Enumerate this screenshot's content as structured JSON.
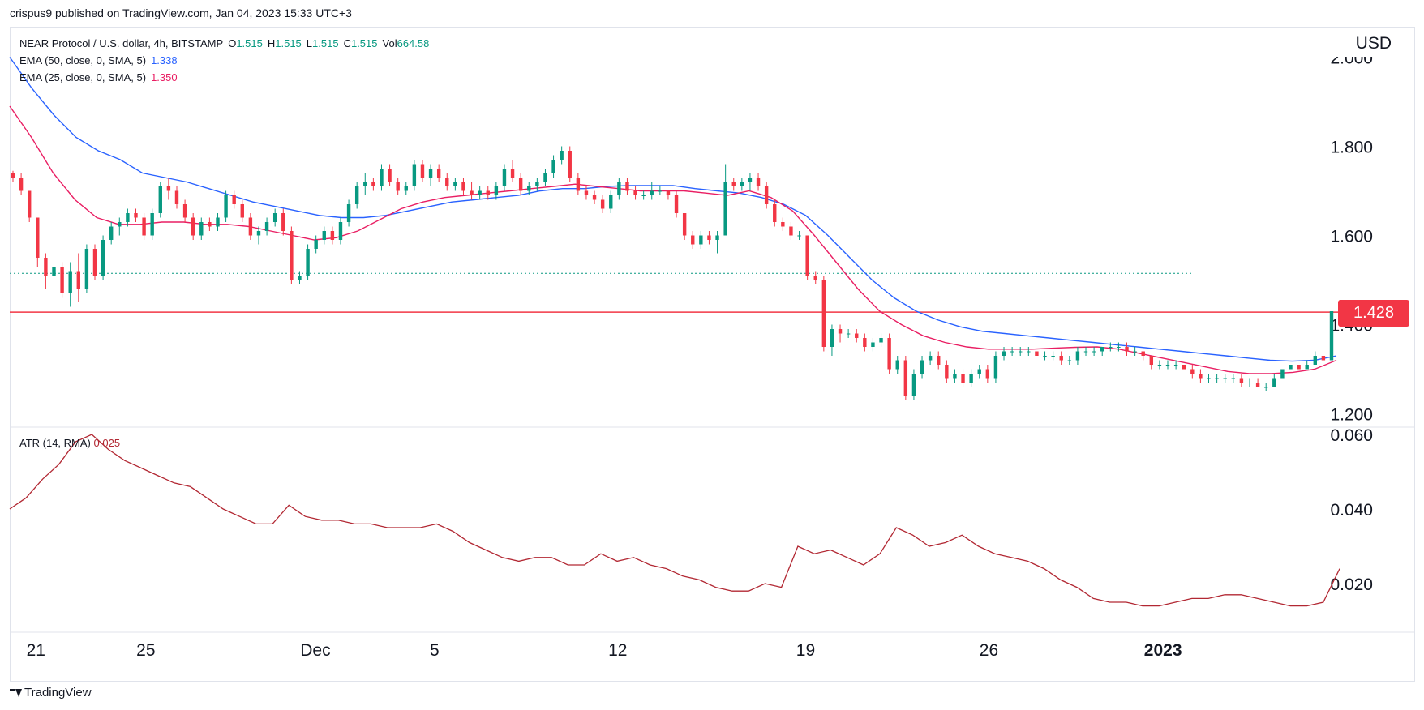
{
  "header": {
    "published_by": "crispus9 published on TradingView.com, Jan 04, 2023 15:33 UTC+3"
  },
  "legend": {
    "symbol": "NEAR Protocol / U.S. dollar, 4h, BITSTAMP",
    "o_label": "O",
    "o": "1.515",
    "h_label": "H",
    "h": "1.515",
    "l_label": "L",
    "l": "1.515",
    "c_label": "C",
    "c": "1.515",
    "vol_label": "Vol",
    "vol": "664.58",
    "ema50_label": "EMA (50, close, 0, SMA, 5)",
    "ema50_value": "1.338",
    "ema25_label": "EMA (25, close, 0, SMA, 5)",
    "ema25_value": "1.350"
  },
  "atr_legend": {
    "label": "ATR (14, RMA)",
    "value": "0.025"
  },
  "currency": "USD",
  "price_tag": "1.428",
  "footer": {
    "brand": "TradingView"
  },
  "colors": {
    "up": "#089981",
    "down": "#f23645",
    "ema50": "#2962ff",
    "ema25": "#e91e63",
    "atr": "#b22833",
    "resistance": "#f23645",
    "dotted": "#089981"
  },
  "chart_data": [
    {
      "type": "candlestick",
      "name": "NEAR Protocol / U.S. dollar, 4h, BITSTAMP",
      "y_ticks": [
        "1.200",
        "1.400",
        "1.600",
        "1.800",
        "2.000"
      ],
      "ylim": [
        1.16,
        2.05
      ],
      "x_ticks": [
        "21",
        "25",
        "Dec",
        "5",
        "12",
        "19",
        "26",
        "2023"
      ],
      "horizontal_lines": [
        {
          "value": 1.428,
          "style": "solid",
          "color": "#f23645"
        },
        {
          "value": 1.515,
          "style": "dotted",
          "color": "#089981"
        }
      ],
      "candles": [
        [
          1.74,
          1.745,
          1.72,
          1.73
        ],
        [
          1.73,
          1.74,
          1.69,
          1.7
        ],
        [
          1.7,
          1.7,
          1.63,
          1.64
        ],
        [
          1.64,
          1.64,
          1.53,
          1.55
        ],
        [
          1.55,
          1.56,
          1.48,
          1.51
        ],
        [
          1.51,
          1.55,
          1.48,
          1.53
        ],
        [
          1.53,
          1.54,
          1.46,
          1.47
        ],
        [
          1.47,
          1.54,
          1.44,
          1.52
        ],
        [
          1.52,
          1.56,
          1.45,
          1.48
        ],
        [
          1.48,
          1.58,
          1.47,
          1.57
        ],
        [
          1.57,
          1.58,
          1.5,
          1.51
        ],
        [
          1.51,
          1.6,
          1.5,
          1.59
        ],
        [
          1.59,
          1.63,
          1.58,
          1.62
        ],
        [
          1.62,
          1.64,
          1.6,
          1.63
        ],
        [
          1.63,
          1.66,
          1.62,
          1.65
        ],
        [
          1.65,
          1.66,
          1.63,
          1.64
        ],
        [
          1.64,
          1.65,
          1.59,
          1.6
        ],
        [
          1.6,
          1.66,
          1.59,
          1.65
        ],
        [
          1.65,
          1.72,
          1.64,
          1.71
        ],
        [
          1.71,
          1.73,
          1.68,
          1.7
        ],
        [
          1.7,
          1.71,
          1.66,
          1.67
        ],
        [
          1.67,
          1.68,
          1.63,
          1.64
        ],
        [
          1.64,
          1.65,
          1.59,
          1.6
        ],
        [
          1.6,
          1.64,
          1.59,
          1.63
        ],
        [
          1.63,
          1.64,
          1.61,
          1.62
        ],
        [
          1.62,
          1.65,
          1.61,
          1.64
        ],
        [
          1.64,
          1.7,
          1.63,
          1.69
        ],
        [
          1.69,
          1.7,
          1.66,
          1.67
        ],
        [
          1.67,
          1.68,
          1.63,
          1.64
        ],
        [
          1.64,
          1.65,
          1.59,
          1.6
        ],
        [
          1.6,
          1.62,
          1.58,
          1.61
        ],
        [
          1.61,
          1.64,
          1.6,
          1.63
        ],
        [
          1.63,
          1.66,
          1.62,
          1.65
        ],
        [
          1.65,
          1.66,
          1.6,
          1.61
        ],
        [
          1.61,
          1.62,
          1.49,
          1.5
        ],
        [
          1.5,
          1.52,
          1.49,
          1.51
        ],
        [
          1.51,
          1.58,
          1.5,
          1.57
        ],
        [
          1.57,
          1.6,
          1.56,
          1.59
        ],
        [
          1.59,
          1.62,
          1.58,
          1.61
        ],
        [
          1.61,
          1.62,
          1.58,
          1.59
        ],
        [
          1.59,
          1.64,
          1.58,
          1.63
        ],
        [
          1.63,
          1.68,
          1.62,
          1.67
        ],
        [
          1.67,
          1.72,
          1.66,
          1.71
        ],
        [
          1.71,
          1.74,
          1.69,
          1.72
        ],
        [
          1.72,
          1.73,
          1.7,
          1.71
        ],
        [
          1.71,
          1.76,
          1.7,
          1.75
        ],
        [
          1.75,
          1.76,
          1.71,
          1.72
        ],
        [
          1.72,
          1.73,
          1.69,
          1.7
        ],
        [
          1.7,
          1.72,
          1.69,
          1.71
        ],
        [
          1.71,
          1.77,
          1.7,
          1.76
        ],
        [
          1.76,
          1.77,
          1.72,
          1.73
        ],
        [
          1.73,
          1.76,
          1.71,
          1.75
        ],
        [
          1.75,
          1.76,
          1.72,
          1.73
        ],
        [
          1.73,
          1.74,
          1.7,
          1.71
        ],
        [
          1.71,
          1.73,
          1.7,
          1.72
        ],
        [
          1.72,
          1.73,
          1.69,
          1.7
        ],
        [
          1.7,
          1.72,
          1.68,
          1.69
        ],
        [
          1.69,
          1.71,
          1.68,
          1.7
        ],
        [
          1.7,
          1.71,
          1.68,
          1.69
        ],
        [
          1.69,
          1.72,
          1.68,
          1.71
        ],
        [
          1.71,
          1.76,
          1.7,
          1.75
        ],
        [
          1.75,
          1.77,
          1.72,
          1.73
        ],
        [
          1.73,
          1.74,
          1.69,
          1.7
        ],
        [
          1.7,
          1.72,
          1.69,
          1.71
        ],
        [
          1.71,
          1.73,
          1.7,
          1.72
        ],
        [
          1.72,
          1.75,
          1.71,
          1.74
        ],
        [
          1.74,
          1.78,
          1.73,
          1.77
        ],
        [
          1.77,
          1.8,
          1.76,
          1.79
        ],
        [
          1.79,
          1.8,
          1.72,
          1.73
        ],
        [
          1.73,
          1.74,
          1.69,
          1.7
        ],
        [
          1.7,
          1.71,
          1.68,
          1.69
        ],
        [
          1.69,
          1.7,
          1.67,
          1.68
        ],
        [
          1.68,
          1.69,
          1.65,
          1.66
        ],
        [
          1.66,
          1.7,
          1.65,
          1.69
        ],
        [
          1.69,
          1.73,
          1.68,
          1.72
        ],
        [
          1.72,
          1.73,
          1.69,
          1.7
        ],
        [
          1.7,
          1.71,
          1.68,
          1.69
        ],
        [
          1.69,
          1.7,
          1.68,
          1.69
        ],
        [
          1.69,
          1.72,
          1.68,
          1.7
        ],
        [
          1.7,
          1.71,
          1.69,
          1.7
        ],
        [
          1.7,
          1.7,
          1.68,
          1.69
        ],
        [
          1.69,
          1.7,
          1.64,
          1.65
        ],
        [
          1.65,
          1.65,
          1.59,
          1.6
        ],
        [
          1.6,
          1.61,
          1.57,
          1.58
        ],
        [
          1.58,
          1.61,
          1.57,
          1.6
        ],
        [
          1.6,
          1.61,
          1.58,
          1.59
        ],
        [
          1.59,
          1.61,
          1.56,
          1.6
        ],
        [
          1.6,
          1.76,
          1.6,
          1.72
        ],
        [
          1.72,
          1.73,
          1.7,
          1.71
        ],
        [
          1.71,
          1.73,
          1.7,
          1.72
        ],
        [
          1.72,
          1.74,
          1.7,
          1.73
        ],
        [
          1.73,
          1.74,
          1.7,
          1.71
        ],
        [
          1.71,
          1.72,
          1.66,
          1.67
        ],
        [
          1.67,
          1.68,
          1.62,
          1.63
        ],
        [
          1.63,
          1.64,
          1.61,
          1.62
        ],
        [
          1.62,
          1.63,
          1.59,
          1.6
        ],
        [
          1.6,
          1.61,
          1.59,
          1.6
        ],
        [
          1.6,
          1.6,
          1.5,
          1.51
        ],
        [
          1.51,
          1.52,
          1.49,
          1.5
        ],
        [
          1.5,
          1.51,
          1.34,
          1.35
        ],
        [
          1.35,
          1.4,
          1.33,
          1.39
        ],
        [
          1.39,
          1.4,
          1.36,
          1.38
        ],
        [
          1.38,
          1.39,
          1.37,
          1.38
        ],
        [
          1.38,
          1.39,
          1.36,
          1.37
        ],
        [
          1.37,
          1.38,
          1.34,
          1.35
        ],
        [
          1.35,
          1.37,
          1.34,
          1.36
        ],
        [
          1.36,
          1.38,
          1.35,
          1.37
        ],
        [
          1.37,
          1.38,
          1.29,
          1.3
        ],
        [
          1.3,
          1.33,
          1.29,
          1.32
        ],
        [
          1.32,
          1.33,
          1.23,
          1.24
        ],
        [
          1.24,
          1.3,
          1.23,
          1.29
        ],
        [
          1.29,
          1.33,
          1.28,
          1.32
        ],
        [
          1.32,
          1.34,
          1.31,
          1.33
        ],
        [
          1.33,
          1.34,
          1.3,
          1.31
        ],
        [
          1.31,
          1.32,
          1.27,
          1.28
        ],
        [
          1.28,
          1.3,
          1.27,
          1.29
        ],
        [
          1.29,
          1.3,
          1.26,
          1.27
        ],
        [
          1.27,
          1.3,
          1.26,
          1.29
        ],
        [
          1.29,
          1.31,
          1.28,
          1.3
        ],
        [
          1.3,
          1.31,
          1.27,
          1.28
        ],
        [
          1.28,
          1.34,
          1.27,
          1.33
        ],
        [
          1.33,
          1.35,
          1.32,
          1.34
        ],
        [
          1.34,
          1.35,
          1.33,
          1.34
        ],
        [
          1.34,
          1.35,
          1.33,
          1.34
        ],
        [
          1.34,
          1.35,
          1.33,
          1.34
        ],
        [
          1.34,
          1.34,
          1.33,
          1.33
        ],
        [
          1.33,
          1.34,
          1.32,
          1.33
        ],
        [
          1.33,
          1.34,
          1.32,
          1.33
        ],
        [
          1.33,
          1.34,
          1.31,
          1.32
        ],
        [
          1.32,
          1.33,
          1.31,
          1.32
        ],
        [
          1.32,
          1.35,
          1.31,
          1.34
        ],
        [
          1.34,
          1.35,
          1.33,
          1.34
        ],
        [
          1.34,
          1.35,
          1.33,
          1.34
        ],
        [
          1.34,
          1.35,
          1.33,
          1.35
        ],
        [
          1.35,
          1.36,
          1.34,
          1.35
        ],
        [
          1.35,
          1.36,
          1.34,
          1.35
        ],
        [
          1.35,
          1.36,
          1.33,
          1.34
        ],
        [
          1.34,
          1.35,
          1.33,
          1.34
        ],
        [
          1.34,
          1.34,
          1.32,
          1.33
        ],
        [
          1.33,
          1.33,
          1.3,
          1.31
        ],
        [
          1.31,
          1.32,
          1.3,
          1.31
        ],
        [
          1.31,
          1.32,
          1.3,
          1.31
        ],
        [
          1.31,
          1.32,
          1.3,
          1.31
        ],
        [
          1.31,
          1.31,
          1.3,
          1.3
        ],
        [
          1.3,
          1.31,
          1.28,
          1.29
        ],
        [
          1.29,
          1.3,
          1.27,
          1.28
        ],
        [
          1.28,
          1.29,
          1.27,
          1.28
        ],
        [
          1.28,
          1.29,
          1.27,
          1.28
        ],
        [
          1.28,
          1.29,
          1.27,
          1.28
        ],
        [
          1.28,
          1.29,
          1.27,
          1.28
        ],
        [
          1.28,
          1.29,
          1.26,
          1.27
        ],
        [
          1.27,
          1.28,
          1.26,
          1.27
        ],
        [
          1.27,
          1.28,
          1.26,
          1.26
        ],
        [
          1.26,
          1.27,
          1.25,
          1.26
        ],
        [
          1.26,
          1.29,
          1.26,
          1.28
        ],
        [
          1.28,
          1.3,
          1.28,
          1.3
        ],
        [
          1.3,
          1.31,
          1.3,
          1.31
        ],
        [
          1.31,
          1.31,
          1.3,
          1.3
        ],
        [
          1.3,
          1.32,
          1.3,
          1.31
        ],
        [
          1.31,
          1.34,
          1.31,
          1.33
        ],
        [
          1.33,
          1.33,
          1.32,
          1.32
        ],
        [
          1.32,
          1.43,
          1.32,
          1.43
        ]
      ],
      "series": [
        {
          "name": "EMA (50, close, 0, SMA, 5)",
          "color": "#2962ff",
          "values": [
            2.0,
            1.93,
            1.87,
            1.82,
            1.79,
            1.77,
            1.74,
            1.73,
            1.72,
            1.705,
            1.69,
            1.675,
            1.665,
            1.655,
            1.645,
            1.64,
            1.64,
            1.645,
            1.655,
            1.665,
            1.675,
            1.68,
            1.685,
            1.69,
            1.7,
            1.705,
            1.705,
            1.71,
            1.712,
            1.712,
            1.712,
            1.705,
            1.7,
            1.695,
            1.685,
            1.67,
            1.645,
            1.6,
            1.55,
            1.5,
            1.46,
            1.43,
            1.41,
            1.395,
            1.385,
            1.38,
            1.375,
            1.37,
            1.365,
            1.36,
            1.355,
            1.35,
            1.345,
            1.34,
            1.335,
            1.33,
            1.325,
            1.32,
            1.318,
            1.32,
            1.33
          ]
        },
        {
          "name": "EMA (25, close, 0, SMA, 5)",
          "color": "#e91e63",
          "values": [
            1.89,
            1.82,
            1.74,
            1.68,
            1.64,
            1.625,
            1.625,
            1.63,
            1.63,
            1.625,
            1.625,
            1.62,
            1.61,
            1.6,
            1.59,
            1.595,
            1.61,
            1.635,
            1.66,
            1.675,
            1.685,
            1.69,
            1.695,
            1.7,
            1.705,
            1.71,
            1.715,
            1.71,
            1.705,
            1.7,
            1.7,
            1.7,
            1.695,
            1.69,
            1.7,
            1.685,
            1.655,
            1.6,
            1.54,
            1.48,
            1.43,
            1.4,
            1.375,
            1.36,
            1.35,
            1.345,
            1.345,
            1.345,
            1.347,
            1.349,
            1.35,
            1.345,
            1.335,
            1.325,
            1.315,
            1.305,
            1.295,
            1.29,
            1.29,
            1.293,
            1.3,
            1.32
          ]
        }
      ]
    },
    {
      "type": "line",
      "name": "ATR (14, RMA)",
      "y_ticks": [
        "0.020",
        "0.040",
        "0.060"
      ],
      "ylim": [
        0.0068,
        0.0607
      ],
      "series": [
        {
          "name": "ATR (14, RMA)",
          "color": "#b22833",
          "values": [
            0.04,
            0.043,
            0.048,
            0.052,
            0.058,
            0.06,
            0.056,
            0.053,
            0.051,
            0.049,
            0.047,
            0.046,
            0.043,
            0.04,
            0.038,
            0.036,
            0.036,
            0.041,
            0.038,
            0.037,
            0.037,
            0.036,
            0.036,
            0.035,
            0.035,
            0.035,
            0.036,
            0.034,
            0.031,
            0.029,
            0.027,
            0.026,
            0.027,
            0.027,
            0.025,
            0.025,
            0.028,
            0.026,
            0.027,
            0.025,
            0.024,
            0.022,
            0.021,
            0.019,
            0.018,
            0.018,
            0.02,
            0.019,
            0.03,
            0.028,
            0.029,
            0.027,
            0.025,
            0.028,
            0.035,
            0.033,
            0.03,
            0.031,
            0.033,
            0.03,
            0.028,
            0.027,
            0.026,
            0.024,
            0.021,
            0.019,
            0.016,
            0.015,
            0.015,
            0.014,
            0.014,
            0.015,
            0.016,
            0.016,
            0.017,
            0.017,
            0.016,
            0.015,
            0.014,
            0.014,
            0.015,
            0.024
          ]
        }
      ]
    }
  ]
}
